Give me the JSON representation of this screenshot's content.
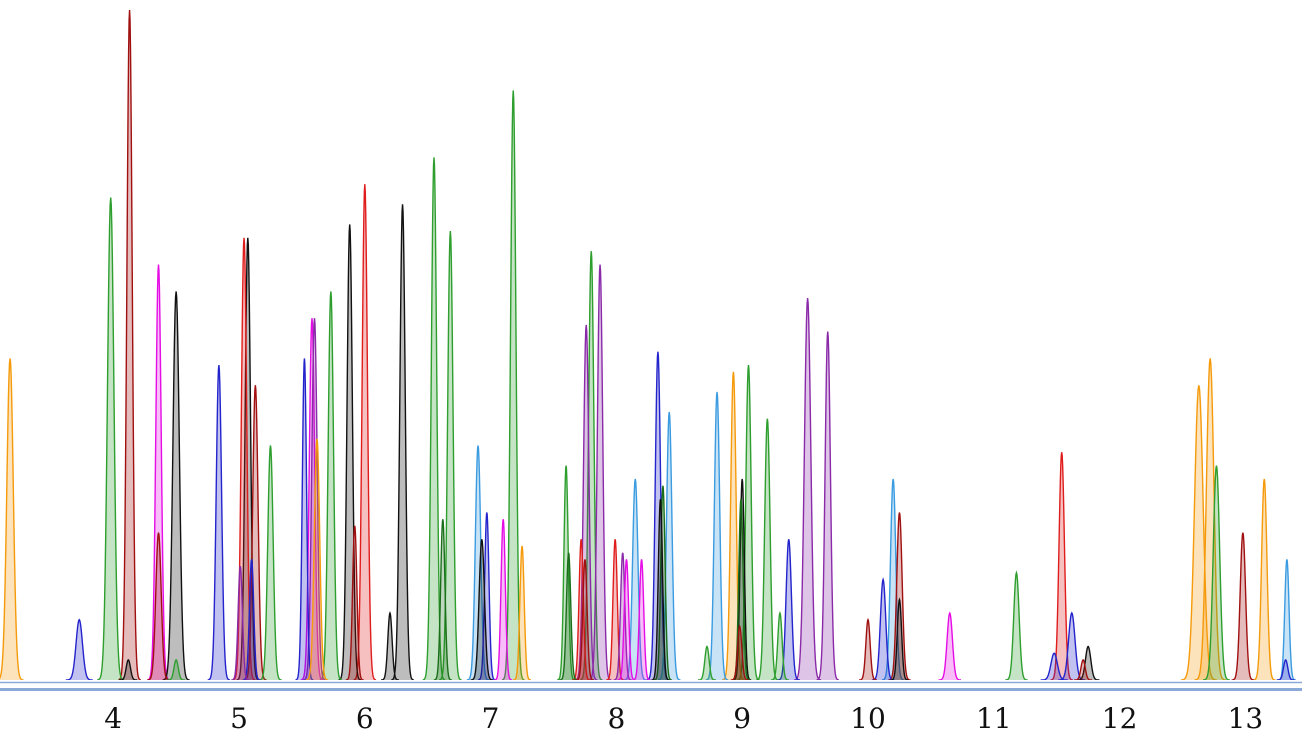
{
  "chart_data": {
    "type": "line",
    "title": "",
    "xlabel": "",
    "ylabel": "",
    "xlim": [
      3.1,
      13.45
    ],
    "ylim": [
      0,
      100
    ],
    "x_ticks": [
      "4",
      "5",
      "6",
      "7",
      "8",
      "9",
      "10",
      "11",
      "12",
      "13"
    ],
    "grid": false,
    "legend": "none",
    "baseline_color": "#8aa9d8",
    "series": [
      {
        "color": "#f59a0b",
        "peaks": [
          [
            3.18,
            48,
            0.06
          ],
          [
            5.62,
            36,
            0.05
          ],
          [
            7.25,
            20,
            0.04
          ],
          [
            8.93,
            46,
            0.05
          ],
          [
            12.63,
            44,
            0.08
          ],
          [
            12.72,
            48,
            0.07
          ],
          [
            13.15,
            30,
            0.05
          ]
        ]
      },
      {
        "color": "#2e9e2e",
        "peaks": [
          [
            3.98,
            72,
            0.06
          ],
          [
            4.5,
            3,
            0.04
          ],
          [
            5.25,
            35,
            0.05
          ],
          [
            5.73,
            58,
            0.05
          ],
          [
            6.55,
            78,
            0.05
          ],
          [
            6.68,
            67,
            0.05
          ],
          [
            7.18,
            88,
            0.05
          ],
          [
            7.6,
            32,
            0.04
          ],
          [
            7.8,
            64,
            0.05
          ],
          [
            8.72,
            5,
            0.04
          ],
          [
            9.05,
            47,
            0.05
          ],
          [
            9.2,
            39,
            0.05
          ],
          [
            9.3,
            10,
            0.04
          ],
          [
            11.18,
            16,
            0.05
          ],
          [
            12.77,
            32,
            0.06
          ]
        ]
      },
      {
        "color": "#a01010",
        "peaks": [
          [
            4.13,
            100,
            0.05
          ],
          [
            4.36,
            22,
            0.05
          ],
          [
            5.13,
            44,
            0.05
          ],
          [
            5.92,
            23,
            0.04
          ],
          [
            7.75,
            18,
            0.04
          ],
          [
            8.98,
            8,
            0.04
          ],
          [
            10.0,
            9,
            0.04
          ],
          [
            10.25,
            25,
            0.05
          ],
          [
            11.71,
            3,
            0.04
          ],
          [
            12.98,
            22,
            0.05
          ]
        ]
      },
      {
        "color": "#e50de5",
        "peaks": [
          [
            4.36,
            62,
            0.05
          ],
          [
            5.58,
            54,
            0.05
          ],
          [
            7.1,
            24,
            0.04
          ],
          [
            8.08,
            18,
            0.04
          ],
          [
            8.2,
            18,
            0.04
          ],
          [
            10.65,
            10,
            0.05
          ]
        ]
      },
      {
        "color": "#111111",
        "peaks": [
          [
            4.12,
            3,
            0.04
          ],
          [
            4.5,
            58,
            0.06
          ],
          [
            5.07,
            66,
            0.05
          ],
          [
            5.88,
            68,
            0.05
          ],
          [
            6.2,
            10,
            0.04
          ],
          [
            6.3,
            71,
            0.05
          ],
          [
            6.93,
            21,
            0.05
          ],
          [
            8.35,
            27,
            0.04
          ],
          [
            9.0,
            30,
            0.04
          ],
          [
            10.25,
            12,
            0.04
          ],
          [
            11.75,
            5,
            0.05
          ]
        ]
      },
      {
        "color": "#2424cc",
        "peaks": [
          [
            3.73,
            9,
            0.06
          ],
          [
            4.84,
            47,
            0.05
          ],
          [
            5.1,
            18,
            0.04
          ],
          [
            5.52,
            48,
            0.04
          ],
          [
            6.97,
            25,
            0.04
          ],
          [
            8.33,
            49,
            0.05
          ],
          [
            9.37,
            21,
            0.05
          ],
          [
            10.12,
            15,
            0.05
          ],
          [
            11.48,
            4,
            0.06
          ],
          [
            11.62,
            10,
            0.06
          ],
          [
            13.32,
            3,
            0.04
          ]
        ]
      },
      {
        "color": "#e01d1d",
        "peaks": [
          [
            5.04,
            66,
            0.05
          ],
          [
            6.0,
            74,
            0.05
          ],
          [
            7.72,
            21,
            0.04
          ],
          [
            7.99,
            21,
            0.04
          ],
          [
            11.54,
            34,
            0.05
          ]
        ]
      },
      {
        "color": "#8a2aa8",
        "peaks": [
          [
            5.01,
            17,
            0.04
          ],
          [
            5.6,
            54,
            0.05
          ],
          [
            7.76,
            53,
            0.05
          ],
          [
            7.87,
            62,
            0.05
          ],
          [
            8.05,
            19,
            0.04
          ],
          [
            9.52,
            57,
            0.06
          ],
          [
            9.68,
            52,
            0.05
          ]
        ]
      },
      {
        "color": "#3a9be0",
        "peaks": [
          [
            6.9,
            35,
            0.05
          ],
          [
            8.15,
            30,
            0.05
          ],
          [
            8.42,
            40,
            0.05
          ],
          [
            8.8,
            43,
            0.05
          ],
          [
            10.2,
            30,
            0.05
          ],
          [
            13.33,
            18,
            0.04
          ]
        ]
      },
      {
        "color": "#1a6e1a",
        "peaks": [
          [
            6.62,
            24,
            0.04
          ],
          [
            7.62,
            19,
            0.04
          ],
          [
            8.37,
            29,
            0.04
          ],
          [
            8.99,
            27,
            0.04
          ]
        ]
      }
    ]
  }
}
